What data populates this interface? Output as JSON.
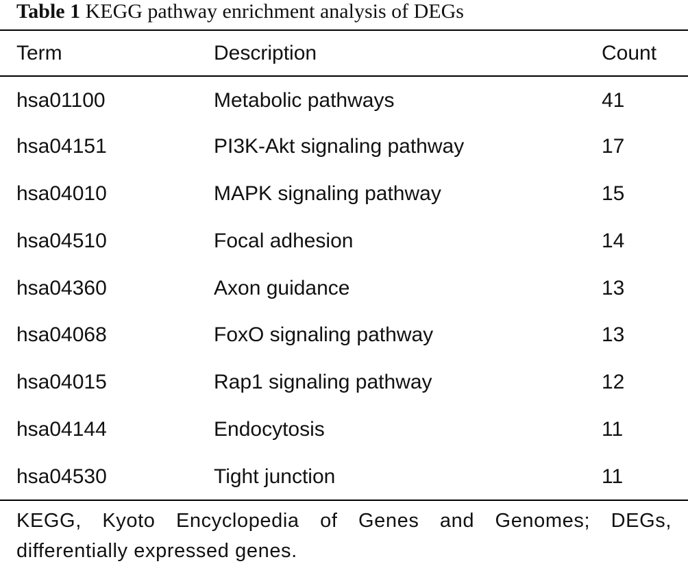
{
  "table": {
    "caption_label": "Table 1",
    "caption_title": "KEGG pathway enrichment analysis of DEGs",
    "headers": {
      "term": "Term",
      "description": "Description",
      "count": "Count"
    },
    "rows": [
      {
        "term": "hsa01100",
        "description": "Metabolic pathways",
        "count": "41"
      },
      {
        "term": "hsa04151",
        "description": "PI3K-Akt signaling pathway",
        "count": "17"
      },
      {
        "term": "hsa04010",
        "description": "MAPK signaling pathway",
        "count": "15"
      },
      {
        "term": "hsa04510",
        "description": "Focal adhesion",
        "count": "14"
      },
      {
        "term": "hsa04360",
        "description": "Axon guidance",
        "count": "13"
      },
      {
        "term": "hsa04068",
        "description": "FoxO signaling pathway",
        "count": "13"
      },
      {
        "term": "hsa04015",
        "description": "Rap1 signaling pathway",
        "count": "12"
      },
      {
        "term": "hsa04144",
        "description": "Endocytosis",
        "count": "11"
      },
      {
        "term": "hsa04530",
        "description": "Tight junction",
        "count": "11"
      }
    ],
    "footnote": "KEGG, Kyoto Encyclopedia of Genes and Genomes; DEGs, differentially expressed genes."
  }
}
